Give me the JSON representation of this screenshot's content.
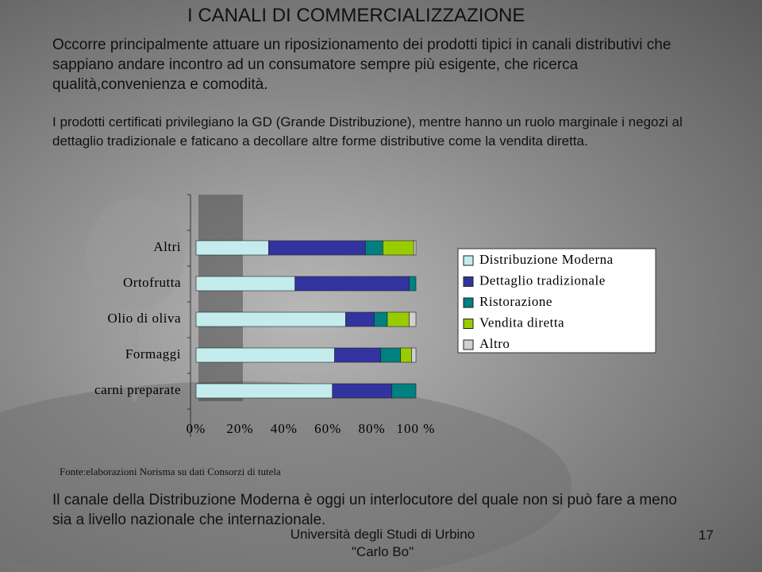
{
  "title": "I CANALI DI COMMERCIALIZZAZIONE",
  "paragraphs": [
    "Occorre principalmente attuare un riposizionamento dei prodotti tipici in canali distributivi che sappiano andare incontro ad un consumatore sempre più esigente, che ricerca qualità,convenienza e comodità.",
    "I prodotti certificati privilegiano la GD (Grande Distribuzione), mentre hanno un ruolo marginale i negozi al dettaglio tradizionale e faticano a decollare altre forme distributive come la vendita diretta.",
    "Il canale della Distribuzione Moderna è oggi un interlocutore del quale non si può fare a meno sia a livello nazionale che internazionale."
  ],
  "source": "Fonte:elaborazioni Norisma su dati Consorzi di tutela",
  "footer": {
    "institution": "Università degli Studi di Urbino \"Carlo Bo\"",
    "page": "17"
  },
  "chart_data": {
    "type": "stacked-bar-horizontal",
    "categories": [
      "Altri",
      "Ortofrutta",
      "Olio di oliva",
      "Formaggi",
      "carni preparate"
    ],
    "series": [
      {
        "name": "Distribuzione Moderna",
        "color": "#c4ecec",
        "values": [
          33,
          45,
          68,
          63,
          62
        ]
      },
      {
        "name": "Dettaglio tradizionale",
        "color": "#3333a0",
        "values": [
          44,
          52,
          13,
          21,
          27
        ]
      },
      {
        "name": "Ristorazione",
        "color": "#008080",
        "values": [
          8,
          3,
          6,
          9,
          11
        ]
      },
      {
        "name": "Vendita diretta",
        "color": "#99cc00",
        "values": [
          14,
          0,
          10,
          5,
          0
        ]
      },
      {
        "name": "Altro",
        "color": "#d0d0d0",
        "values": [
          1,
          0,
          3,
          2,
          0
        ]
      }
    ],
    "xlim": [
      0,
      100
    ],
    "xticks": [
      {
        "value": 0,
        "label": "0%"
      },
      {
        "value": 20,
        "label": "20%"
      },
      {
        "value": 40,
        "label": "40%"
      },
      {
        "value": 60,
        "label": "60%"
      },
      {
        "value": 80,
        "label": "80%"
      },
      {
        "value": 100,
        "label": "100 %"
      }
    ],
    "legend": "right"
  }
}
